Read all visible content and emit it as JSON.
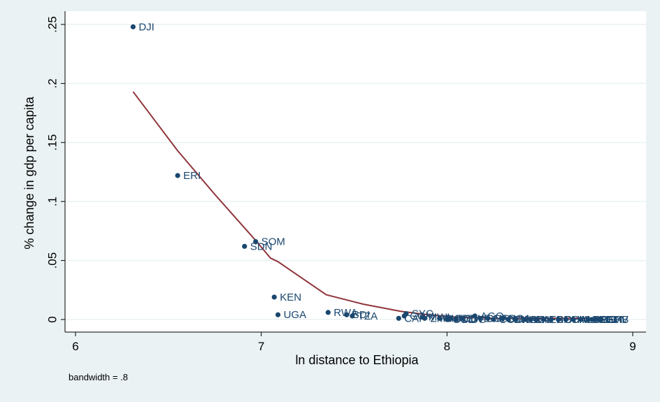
{
  "chart_data": {
    "type": "scatter",
    "xlabel": "ln distance to Ethiopia",
    "ylabel": "% change in gdp per capita",
    "note": "bandwidth = .8",
    "xlim": [
      6,
      9
    ],
    "ylim": [
      0,
      0.25
    ],
    "xticks": [
      {
        "value": 6,
        "label": "6"
      },
      {
        "value": 7,
        "label": "7"
      },
      {
        "value": 8,
        "label": "8"
      },
      {
        "value": 9,
        "label": "9"
      }
    ],
    "yticks": [
      {
        "value": 0,
        "label": "0"
      },
      {
        "value": 0.05,
        "label": ".05"
      },
      {
        "value": 0.1,
        "label": ".1"
      },
      {
        "value": 0.15,
        "label": ".15"
      },
      {
        "value": 0.2,
        "label": ".2"
      },
      {
        "value": 0.25,
        "label": ".25"
      }
    ],
    "grid": true,
    "colors": {
      "background": "#eaf2f3",
      "plot_area": "#ffffff",
      "points": "#1a476f",
      "line": "#90353b",
      "grid": "#eaf2f3"
    },
    "points": [
      {
        "label": "DJI",
        "x": 6.31,
        "y": 0.248
      },
      {
        "label": "ERI",
        "x": 6.55,
        "y": 0.122
      },
      {
        "label": "SOM",
        "x": 6.97,
        "y": 0.066
      },
      {
        "label": "SDN",
        "x": 6.91,
        "y": 0.062
      },
      {
        "label": "KEN",
        "x": 7.07,
        "y": 0.019
      },
      {
        "label": "UGA",
        "x": 7.09,
        "y": 0.004
      },
      {
        "label": "RWA",
        "x": 7.36,
        "y": 0.006
      },
      {
        "label": "BDI",
        "x": 7.46,
        "y": 0.004
      },
      {
        "label": "TZA",
        "x": 7.49,
        "y": 0.003
      },
      {
        "label": "SYC",
        "x": 7.78,
        "y": 0.005
      },
      {
        "label": "CAF",
        "x": 7.74,
        "y": 0.001
      },
      {
        "label": "COM",
        "x": 7.77,
        "y": 0.003
      },
      {
        "label": "MWI",
        "x": 7.87,
        "y": 0.002
      },
      {
        "label": "ZMB",
        "x": 7.88,
        "y": 0.001
      },
      {
        "label": "MOZ",
        "x": 7.96,
        "y": 0.001
      },
      {
        "label": "COD",
        "x": 8.0,
        "y": 0.0
      },
      {
        "label": "TCD",
        "x": 8.02,
        "y": 0.001
      },
      {
        "label": "MDG",
        "x": 8.05,
        "y": 0.0
      },
      {
        "label": "ZWE",
        "x": 8.08,
        "y": 0.001
      },
      {
        "label": "AGO",
        "x": 8.15,
        "y": 0.003
      },
      {
        "label": "CMR",
        "x": 8.18,
        "y": 0.001
      },
      {
        "label": "GAB",
        "x": 8.22,
        "y": 0.001
      },
      {
        "label": "COG",
        "x": 8.25,
        "y": 0.0
      },
      {
        "label": "NGA",
        "x": 8.3,
        "y": 0.001
      },
      {
        "label": "BWA",
        "x": 8.33,
        "y": 0.0
      },
      {
        "label": "NAM",
        "x": 8.37,
        "y": 0.0
      },
      {
        "label": "BEN",
        "x": 8.42,
        "y": 0.0
      },
      {
        "label": "ZAF",
        "x": 8.45,
        "y": 0.0
      },
      {
        "label": "NER",
        "x": 8.48,
        "y": 0.0
      },
      {
        "label": "TGO",
        "x": 8.52,
        "y": 0.0
      },
      {
        "label": "BFA",
        "x": 8.56,
        "y": 0.0
      },
      {
        "label": "GHA",
        "x": 8.6,
        "y": 0.0
      },
      {
        "label": "CIV",
        "x": 8.64,
        "y": 0.0
      },
      {
        "label": "MLI",
        "x": 8.68,
        "y": 0.0
      },
      {
        "label": "LBR",
        "x": 8.72,
        "y": 0.0
      },
      {
        "label": "SLE",
        "x": 8.76,
        "y": 0.0
      },
      {
        "label": "GIN",
        "x": 8.78,
        "y": 0.0
      },
      {
        "label": "SEN",
        "x": 8.8,
        "y": 0.0
      },
      {
        "label": "GMB",
        "x": 8.82,
        "y": 0.0
      },
      {
        "label": "CPV",
        "x": 8.83,
        "y": 0.0
      }
    ],
    "lowess": {
      "name": "",
      "x": [
        6.31,
        6.55,
        6.75,
        6.97,
        7.05,
        7.09,
        7.35,
        7.55,
        7.75,
        7.9,
        8.05,
        8.25,
        8.45,
        8.65,
        8.83
      ],
      "y": [
        0.193,
        0.143,
        0.106,
        0.067,
        0.052,
        0.049,
        0.021,
        0.013,
        0.007,
        0.004,
        0.002,
        0.001,
        0.001,
        0.001,
        0.001
      ]
    }
  }
}
